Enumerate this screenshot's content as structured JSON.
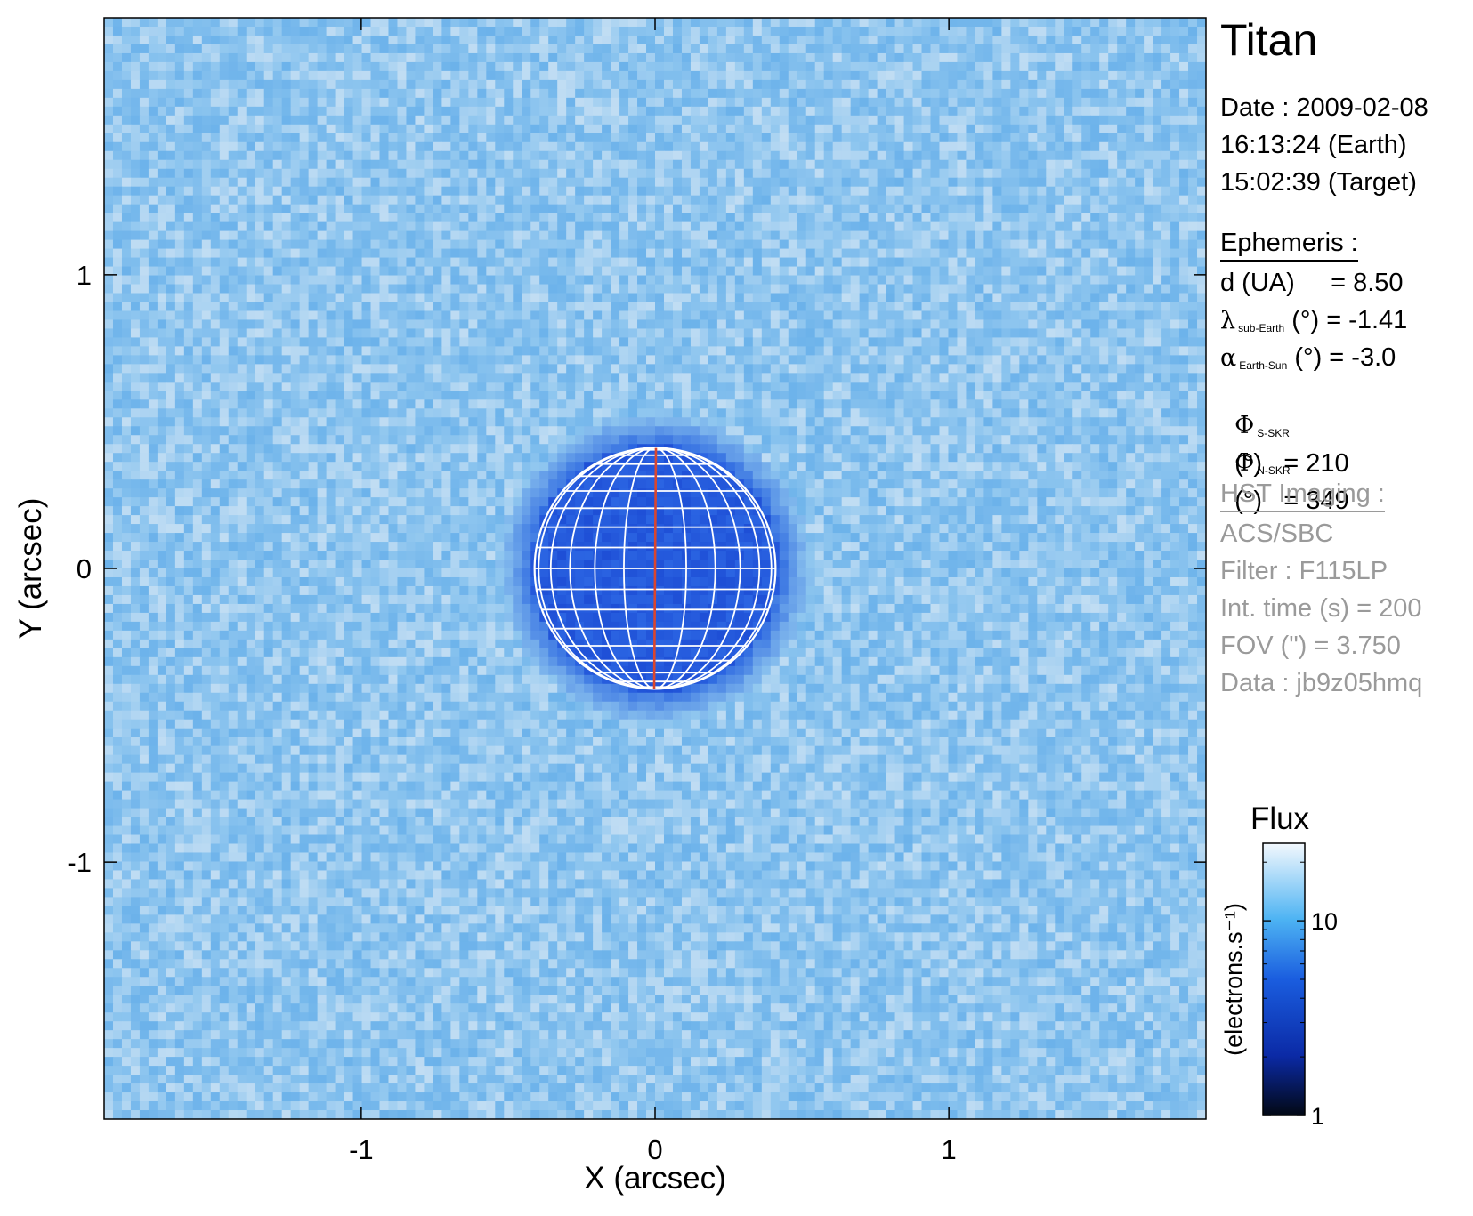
{
  "colors": {
    "background_light": "#d4e6f5",
    "background_mid": "#8fc6ef",
    "disk_dark": "#1e4fd6",
    "grid": "#ffffff",
    "central_meridian": "#d9462f",
    "colorbar_stops": [
      "#f3f8fd",
      "#4db3f3",
      "#1a5ddf",
      "#0b2aa6",
      "#020814"
    ]
  },
  "info": {
    "target": "Titan",
    "date_line": "Date : 2009-02-08",
    "earth_time": "16:13:24 (Earth)",
    "target_time": "15:02:39 (Target)",
    "ephemeris_title": "Ephemeris :",
    "ephemeris": {
      "distance": "d (UA)     = 8.50",
      "lambda_symbol": "λ",
      "lambda_sub": "sub-Earth",
      "lambda_value": "(°) = -1.41",
      "alpha_symbol": "α",
      "alpha_sub": "Earth-Sun",
      "alpha_value": "(°) = -3.0",
      "phi_s_symbol": "Φ",
      "phi_s_sub": "S-SKR",
      "phi_s_value": "(°)   = 210",
      "phi_n_symbol": "Φ",
      "phi_n_sub": "N-SKR",
      "phi_n_value": "(°)   = 349"
    },
    "hst_title": "HST Imaging :",
    "hst": {
      "instrument": "ACS/SBC",
      "filter": "Filter : F115LP",
      "int_time": "Int. time (s) = 200",
      "fov": "FOV (\") = 3.750",
      "data": "Data : jb9z05hmq"
    }
  },
  "chart_data": {
    "type": "heatmap",
    "title": "",
    "xlabel": "X (arcsec)",
    "ylabel": "Y (arcsec)",
    "xlim": [
      -1.875,
      1.875
    ],
    "ylim": [
      -1.875,
      1.875
    ],
    "x_ticks": [
      -1,
      0,
      1
    ],
    "y_ticks": [
      1,
      0,
      -1
    ],
    "x_tick_labels": [
      "-1",
      "0",
      "1"
    ],
    "y_tick_labels": [
      "1",
      "0",
      "-1"
    ],
    "background_flux": 15,
    "disk": {
      "center": [
        0,
        0
      ],
      "radius_arcsec": 0.41,
      "flux": 6,
      "meridians_deg": [
        -75,
        -60,
        -45,
        -30,
        -15,
        0,
        15,
        30,
        45,
        60,
        75
      ],
      "parallels_deg": [
        -80,
        -70,
        -60,
        -50,
        -40,
        -30,
        -20,
        -10,
        0,
        10,
        20,
        30,
        40,
        50,
        60,
        70,
        80
      ],
      "central_meridian_tilt_deg": -1.41
    },
    "colorbar": {
      "title": "Flux",
      "label": "(electrons.s⁻¹)",
      "scale": "log",
      "range": [
        1,
        25
      ],
      "ticks": [
        1,
        10
      ],
      "tick_labels": [
        "1",
        "10"
      ]
    }
  }
}
